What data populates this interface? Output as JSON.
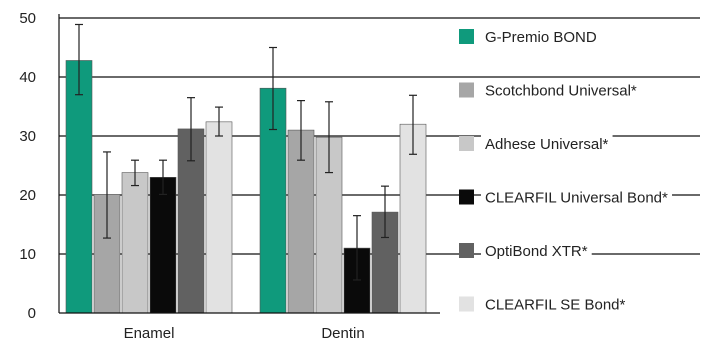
{
  "chart_data": {
    "type": "bar",
    "categories": [
      "Enamel",
      "Dentin"
    ],
    "ylim": [
      0,
      50
    ],
    "yticks": [
      0,
      10,
      20,
      30,
      40,
      50
    ],
    "grid": true,
    "legend_position": "right",
    "series": [
      {
        "name": "G-Premio BOND",
        "color": "#0f9a7c",
        "values": [
          42.8,
          38.1
        ],
        "err_low": [
          37.0,
          31.1
        ],
        "err_high": [
          48.9,
          45.0
        ]
      },
      {
        "name": "Scotchbond Universal*",
        "color": "#a6a6a6",
        "values": [
          20.1,
          31.0
        ],
        "err_low": [
          12.7,
          25.9
        ],
        "err_high": [
          27.3,
          36.0
        ]
      },
      {
        "name": "Adhese Universal*",
        "color": "#c8c8c8",
        "values": [
          23.8,
          29.8
        ],
        "err_low": [
          21.6,
          23.8
        ],
        "err_high": [
          25.9,
          35.8
        ]
      },
      {
        "name": "CLEARFIL Universal Bond*",
        "color": "#0a0a0a",
        "values": [
          23.0,
          11.0
        ],
        "err_low": [
          20.1,
          5.6
        ],
        "err_high": [
          25.9,
          16.5
        ]
      },
      {
        "name": "OptiBond XTR*",
        "color": "#616161",
        "values": [
          31.2,
          17.1
        ],
        "err_low": [
          25.8,
          12.8
        ],
        "err_high": [
          36.5,
          21.5
        ]
      },
      {
        "name": "CLEARFIL SE Bond*",
        "color": "#e2e2e2",
        "values": [
          32.4,
          32.0
        ],
        "err_low": [
          30.0,
          26.9
        ],
        "err_high": [
          34.9,
          36.9
        ]
      }
    ]
  }
}
